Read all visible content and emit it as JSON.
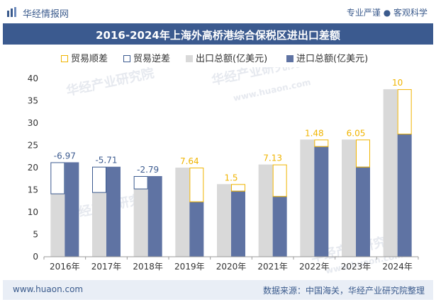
{
  "header": {
    "brand": "华经情报网",
    "slogan": "专业严谨 ● 客观科学",
    "logo_icon": "bar-chart-logo-icon"
  },
  "title": "2016-2024年上海外高桥港综合保税区进出口差额",
  "legend": [
    {
      "label": "贸易顺差",
      "style": "outline-gold",
      "color": "#f0b400"
    },
    {
      "label": "贸易逆差",
      "style": "outline-blue",
      "color": "#3b5a8f"
    },
    {
      "label": "出口总额(亿美元)",
      "style": "fill-gray",
      "color": "#d9d9d9"
    },
    {
      "label": "进口总额(亿美元)",
      "style": "fill-blue",
      "color": "#5f73a3"
    }
  ],
  "footer": {
    "url": "www.huaon.com",
    "source": "数据来源：中国海关，华经产业研究院整理"
  },
  "watermarks": [
    "华经产业研究院",
    "www.huaon.com"
  ],
  "colors": {
    "title_bg": "#3b5a8f",
    "export": "#d9d9d9",
    "import": "#5f73a3",
    "surplus": "#f0b400",
    "deficit": "#3b5a8f"
  },
  "chart_data": {
    "type": "bar",
    "title": "2016-2024年上海外高桥港综合保税区进出口差额",
    "categories": [
      "2016年",
      "2017年",
      "2018年",
      "2019年",
      "2020年",
      "2021年",
      "2022年",
      "2023年",
      "2024年"
    ],
    "series": [
      {
        "name": "出口总额(亿美元)",
        "values": [
          14.2,
          14.5,
          15.3,
          20.0,
          16.3,
          20.7,
          26.3,
          26.3,
          37.6
        ]
      },
      {
        "name": "进口总额(亿美元)",
        "values": [
          21.2,
          20.2,
          18.1,
          12.4,
          14.8,
          13.6,
          24.8,
          20.2,
          27.6
        ]
      }
    ],
    "balance": [
      {
        "label": "-6.97",
        "value": -6.97
      },
      {
        "label": "-5.71",
        "value": -5.71
      },
      {
        "label": "-2.79",
        "value": -2.79
      },
      {
        "label": "7.64",
        "value": 7.64
      },
      {
        "label": "1.5",
        "value": 1.5
      },
      {
        "label": "7.13",
        "value": 7.13
      },
      {
        "label": "1.48",
        "value": 1.48
      },
      {
        "label": "6.05",
        "value": 6.05
      },
      {
        "label": "10",
        "value": 10
      }
    ],
    "yticks": [
      "0",
      "5",
      "10",
      "15",
      "20",
      "25",
      "30",
      "35",
      "40"
    ],
    "ylim": [
      0,
      40
    ],
    "xlabel": "",
    "ylabel": "",
    "grid": false,
    "legend_position": "top"
  }
}
